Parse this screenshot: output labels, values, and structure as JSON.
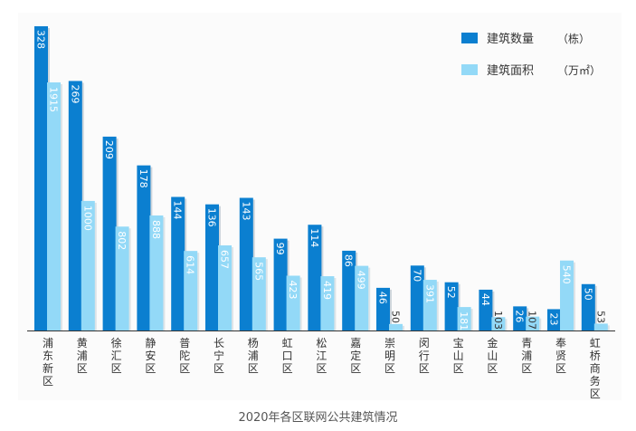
{
  "colors": {
    "series_primary": "#0b7fd0",
    "series_secondary": "#93d9f7",
    "axis": "#333333",
    "label_text": "#ffffff",
    "tick_text": "#333333"
  },
  "chart_data": {
    "type": "bar",
    "title": "",
    "caption": "2020年各区联网公共建筑情况",
    "xlabel": "",
    "ylabel": "",
    "legend_position": "top-right",
    "grid": false,
    "categories": [
      "浦东新区",
      "黄浦区",
      "徐汇区",
      "静安区",
      "普陀区",
      "长宁区",
      "杨浦区",
      "虹口区",
      "松江区",
      "嘉定区",
      "崇明区",
      "闵行区",
      "宝山区",
      "金山区",
      "青浦区",
      "奉贤区",
      "虹桥商务区"
    ],
    "series": [
      {
        "name": "建筑数量",
        "unit": "（栋）",
        "values": [
          328,
          269,
          209,
          178,
          144,
          136,
          143,
          99,
          114,
          86,
          46,
          70,
          52,
          44,
          26,
          23,
          50
        ]
      },
      {
        "name": "建筑面积",
        "unit": "（万㎡）",
        "values": [
          1915,
          1000,
          802,
          888,
          614,
          657,
          565,
          423,
          419,
          499,
          50,
          391,
          181,
          103,
          107,
          540,
          53
        ]
      }
    ]
  }
}
